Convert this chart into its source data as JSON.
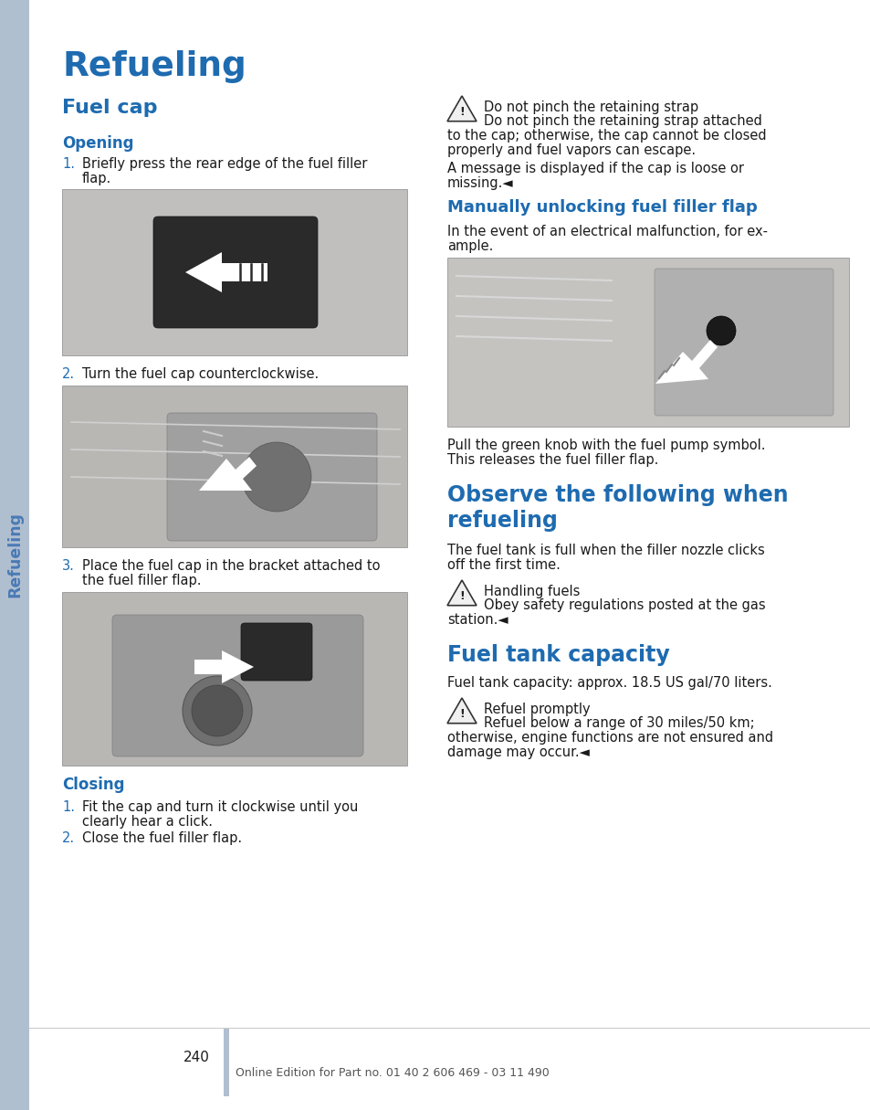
{
  "page_bg": "#ffffff",
  "sidebar_color": "#b0bfd0",
  "blue_heading": "#1e6bb0",
  "text_color": "#1a1a1a",
  "footer_text_color": "#555555",
  "title": "Refueling",
  "sidebar_text": "Refueling",
  "page_number": "240",
  "footer": "Online Edition for Part no. 01 40 2 606 469 - 03 11 490",
  "img1_bg": "#c0bfbd",
  "img2_bg": "#b8b7b4",
  "img3_bg": "#b8b7b4",
  "img4_bg": "#c4c3c0",
  "warn_bg": "#e8e8e8",
  "warn_border": "#555555"
}
